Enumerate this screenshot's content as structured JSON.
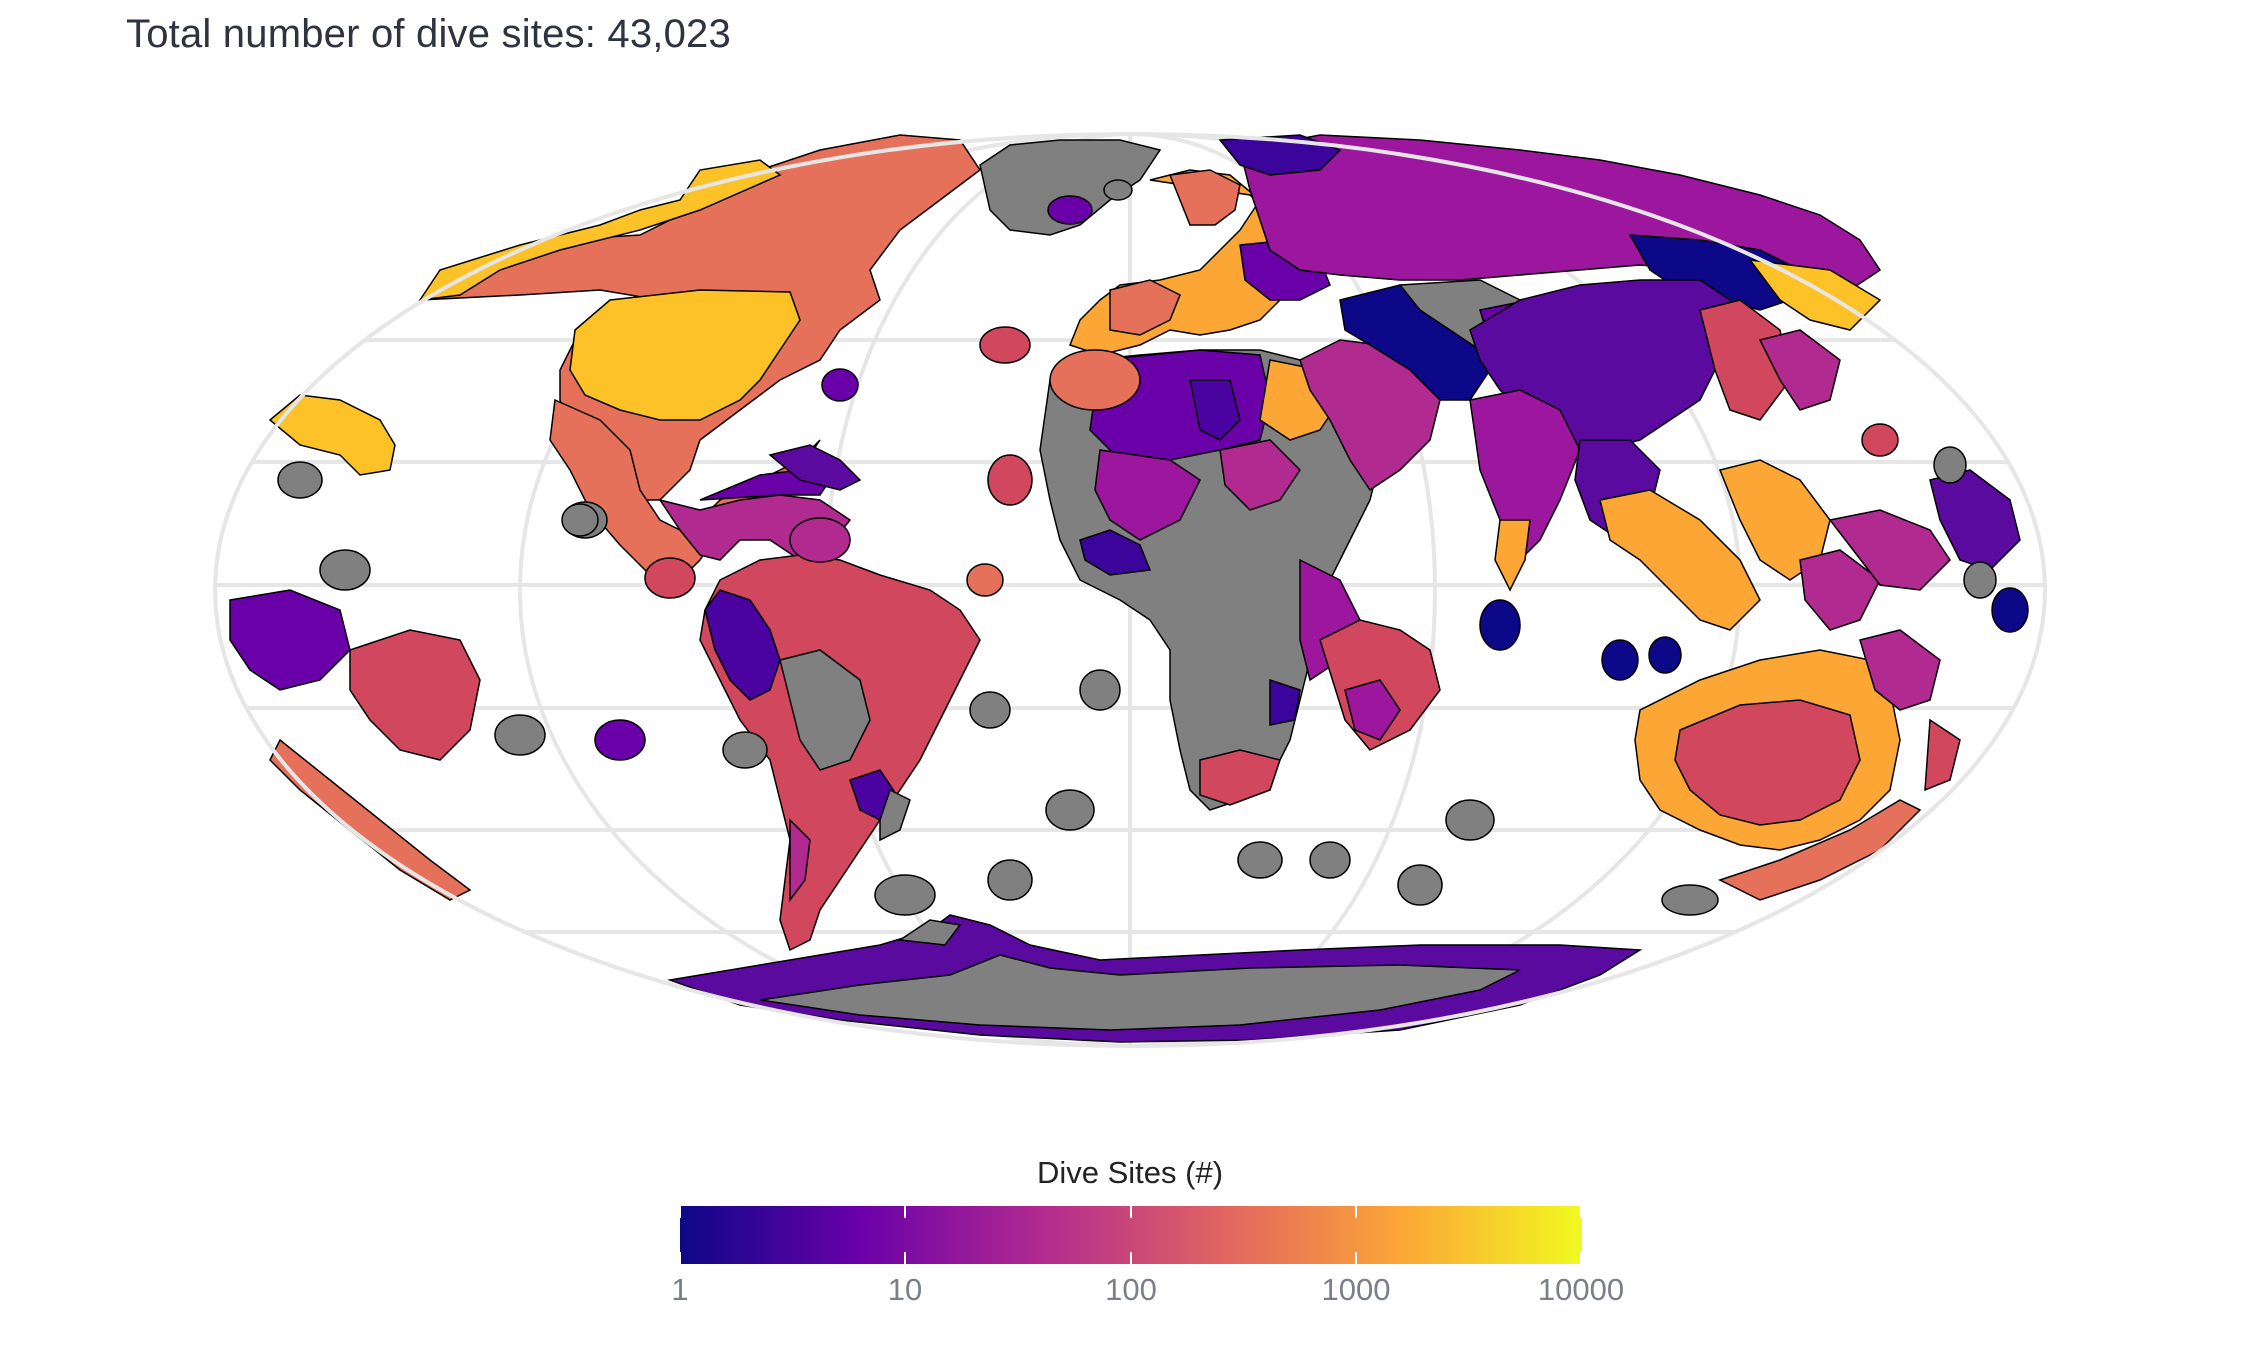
{
  "title": "Total number of dive sites: 43,023",
  "legend": {
    "title": "Dive Sites (#)",
    "ticks": [
      "1",
      "10",
      "100",
      "1000",
      "10000"
    ],
    "scale": "log10",
    "colormap_stops": [
      "#0d0887",
      "#6a00a8",
      "#b12a90",
      "#e16462",
      "#fca636",
      "#f0f921"
    ]
  },
  "colors": {
    "no_data": "#808080",
    "graticule": "#e6e6e6",
    "border": "#000000"
  }
}
